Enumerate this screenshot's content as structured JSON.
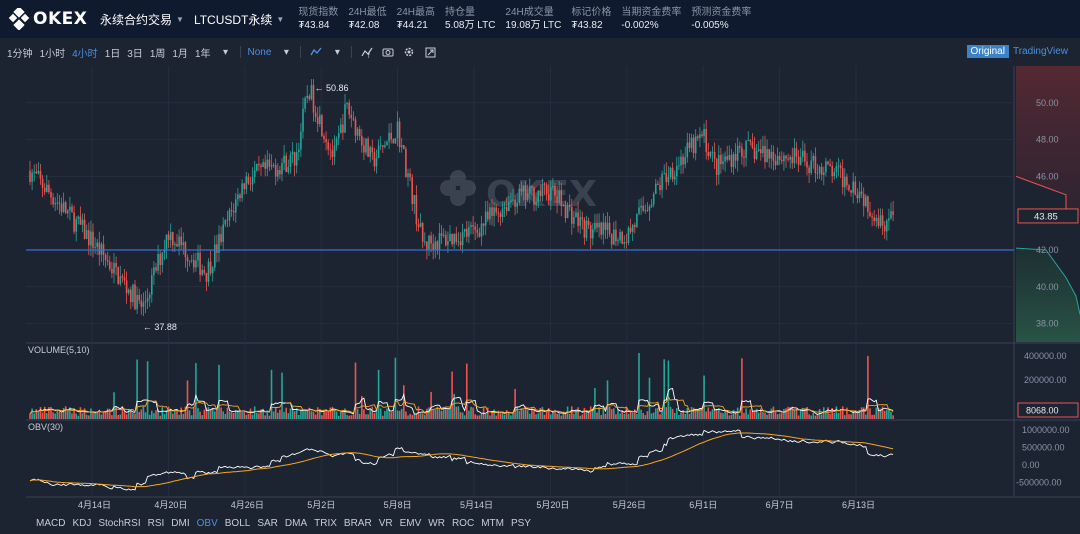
{
  "header": {
    "logo_text": "OKEX",
    "product_type": "永续合约交易",
    "pair": "LTCUSDT永续"
  },
  "stats": [
    {
      "label": "现货指数",
      "value": "₮43.84"
    },
    {
      "label": "24H最低",
      "value": "₮42.08"
    },
    {
      "label": "24H最高",
      "value": "₮44.21"
    },
    {
      "label": "持仓量",
      "value": "5.08万 LTC"
    },
    {
      "label": "24H成交量",
      "value": "19.08万 LTC"
    },
    {
      "label": "标记价格",
      "value": "₮43.82"
    },
    {
      "label": "当期资金费率",
      "value": "-0.002%"
    },
    {
      "label": "预测资金费率",
      "value": "-0.005%"
    }
  ],
  "toolbar": {
    "intervals": [
      "1分钟",
      "1小时",
      "4小时",
      "1日",
      "3日",
      "1周",
      "1月",
      "1年"
    ],
    "active_interval": "4小时",
    "indicator_select": "None",
    "view_original": "Original",
    "view_tradingview": "TradingView"
  },
  "chart": {
    "watermark": "OKEX",
    "high_label": "50.86",
    "low_label": "37.88",
    "current_price": "43.85",
    "price_ticks": [
      "50.00",
      "48.00",
      "46.00",
      "42.00",
      "40.00",
      "38.00"
    ],
    "volume_title": "VOLUME(5,10)",
    "volume_ticks": [
      "400000.00",
      "200000.00"
    ],
    "volume_current": "8068.00",
    "obv_title": "OBV(30)",
    "obv_ticks": [
      "1000000.00",
      "500000.00",
      "0.00",
      "-500000.00"
    ],
    "date_labels": [
      "4月14日",
      "4月20日",
      "4月26日",
      "5月2日",
      "5月8日",
      "5月14日",
      "5月20日",
      "5月26日",
      "6月1日",
      "6月7日",
      "6月13日"
    ],
    "colors": {
      "up": "#26a69a",
      "down": "#ef5350",
      "ma5": "#ffffff",
      "ma10": "#f5a623",
      "line": "#3b6fd8"
    }
  },
  "chart_data": {
    "type": "candlestick",
    "ylim": [
      37,
      52
    ],
    "high": 50.86,
    "low": 37.88,
    "last": 43.85,
    "trend_points": [
      [
        "4月10日",
        46.3
      ],
      [
        "4月14日",
        42.5
      ],
      [
        "4月18日",
        38.8
      ],
      [
        "4月20日",
        43.0
      ],
      [
        "4月23日",
        40.8
      ],
      [
        "4月26日",
        45.8
      ],
      [
        "4月30日",
        47.0
      ],
      [
        "5月1日",
        50.8
      ],
      [
        "5月3日",
        47.0
      ],
      [
        "5月4日",
        49.8
      ],
      [
        "5月6日",
        46.8
      ],
      [
        "5月8日",
        48.6
      ],
      [
        "5月10日",
        42.3
      ],
      [
        "5月14日",
        43.0
      ],
      [
        "5月17日",
        44.8
      ],
      [
        "5月20日",
        45.2
      ],
      [
        "5月23日",
        43.0
      ],
      [
        "5月26日",
        42.8
      ],
      [
        "5月29日",
        46.0
      ],
      [
        "6月1日",
        48.2
      ],
      [
        "6月2日",
        46.5
      ],
      [
        "6月4日",
        47.5
      ],
      [
        "6月8日",
        47.0
      ],
      [
        "6月11日",
        46.3
      ],
      [
        "6月13日",
        45.5
      ],
      [
        "6月15日",
        43.5
      ],
      [
        "6月16日",
        43.85
      ]
    ],
    "support_level": 42.0
  },
  "left_tools": [
    "cursor-icon",
    "crosshair-icon",
    "trend-line-icon",
    "ray-icon",
    "extended-line-icon",
    "arrow-line-icon",
    "horizontal-line-icon",
    "horizontal-ray-icon",
    "parallel-channel-icon",
    "vertical-line-icon",
    "price-range-icon",
    "pitchfork-icon",
    "fib-retracement-icon",
    "fib-fan-icon",
    "gann-icon",
    "brush-icon",
    "measure-icon",
    "visibility-icon",
    "trash-icon"
  ],
  "bottom_indicators": [
    "MACD",
    "KDJ",
    "StochRSI",
    "RSI",
    "DMI",
    "OBV",
    "BOLL",
    "SAR",
    "DMA",
    "TRIX",
    "BRAR",
    "VR",
    "EMV",
    "WR",
    "ROC",
    "MTM",
    "PSY"
  ],
  "active_indicator": "OBV"
}
